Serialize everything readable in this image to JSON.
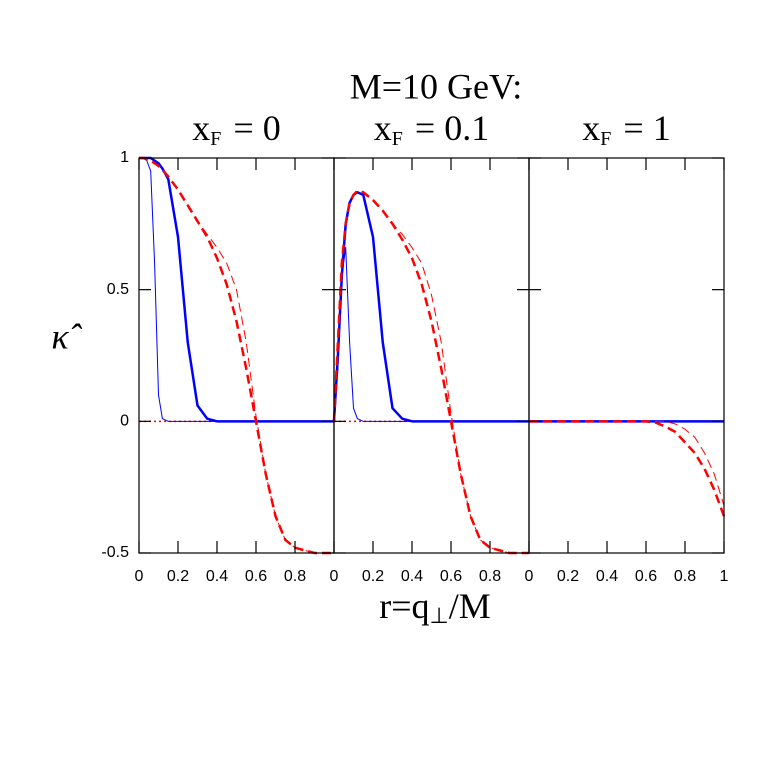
{
  "title": "M=10 GeV:",
  "xlabel": [
    "r=q",
    "⊥",
    "/M"
  ],
  "ylabel": "κ̂",
  "chart_data": [
    {
      "type": "line",
      "title": [
        "x",
        "F",
        "= 0"
      ],
      "x": [
        0,
        0.02,
        0.04,
        0.06,
        0.08,
        0.1,
        0.12,
        0.15,
        0.2,
        0.25,
        0.3,
        0.35,
        0.4,
        0.45,
        0.5,
        0.55,
        0.6,
        0.65,
        0.7,
        0.75,
        0.8,
        0.85,
        0.9,
        0.95,
        1
      ],
      "xlim": [
        0,
        1
      ],
      "ylim": [
        -0.5,
        1
      ],
      "xticks": [
        0,
        0.2,
        0.4,
        0.6,
        0.8
      ],
      "yticks": [
        -0.5,
        0,
        0.5,
        1
      ],
      "series": [
        {
          "color": "#ff0000",
          "linewidth": 1.5,
          "linestyle": "dotted",
          "values": [
            0,
            0,
            0,
            0,
            0,
            0,
            0,
            0,
            0,
            0,
            0,
            0,
            0,
            0,
            0,
            0,
            0,
            0,
            0,
            0,
            0,
            0,
            0,
            0,
            0
          ]
        },
        {
          "color": "#0000ff",
          "linewidth": 1,
          "linestyle": "solid",
          "values": [
            1,
            1,
            0.99,
            0.95,
            0.6,
            0.1,
            0.01,
            0,
            0,
            0,
            0,
            0,
            0,
            0,
            0,
            0,
            0,
            0,
            0,
            0,
            0,
            0,
            0,
            0,
            0
          ]
        },
        {
          "color": "#0000ff",
          "linewidth": 2.5,
          "linestyle": "solid",
          "values": [
            1,
            1,
            1,
            1,
            0.99,
            0.98,
            0.96,
            0.92,
            0.7,
            0.3,
            0.06,
            0.01,
            0,
            0,
            0,
            0,
            0,
            0,
            0,
            0,
            0,
            0,
            0,
            0,
            0
          ]
        },
        {
          "color": "#ff0000",
          "linewidth": 1,
          "linestyle": "dashed",
          "values": [
            1,
            1,
            0.995,
            0.99,
            0.98,
            0.97,
            0.955,
            0.93,
            0.88,
            0.82,
            0.76,
            0.71,
            0.66,
            0.6,
            0.5,
            0.3,
            0.02,
            -0.2,
            -0.36,
            -0.45,
            -0.48,
            -0.49,
            -0.5,
            -0.5,
            -0.5
          ]
        },
        {
          "color": "#ff0000",
          "linewidth": 2.5,
          "linestyle": "dashed",
          "values": [
            1,
            1,
            0.995,
            0.99,
            0.98,
            0.97,
            0.955,
            0.93,
            0.88,
            0.82,
            0.76,
            0.7,
            0.62,
            0.52,
            0.38,
            0.2,
            0,
            -0.2,
            -0.36,
            -0.45,
            -0.48,
            -0.49,
            -0.5,
            -0.5,
            -0.5
          ]
        }
      ]
    },
    {
      "type": "line",
      "title": [
        "x",
        "F",
        "= 0.1"
      ],
      "x": [
        0,
        0.02,
        0.04,
        0.06,
        0.08,
        0.1,
        0.12,
        0.15,
        0.2,
        0.25,
        0.3,
        0.35,
        0.4,
        0.45,
        0.5,
        0.55,
        0.6,
        0.65,
        0.7,
        0.75,
        0.8,
        0.85,
        0.9,
        0.95,
        1
      ],
      "xlim": [
        0,
        1
      ],
      "ylim": [
        -0.5,
        1
      ],
      "xticks": [
        0,
        0.2,
        0.4,
        0.6,
        0.8
      ],
      "yticks": [
        -0.5,
        0,
        0.5,
        1
      ],
      "series": [
        {
          "color": "#ff0000",
          "linewidth": 1.5,
          "linestyle": "dotted",
          "values": [
            0,
            0,
            0,
            0,
            0,
            0,
            0,
            0,
            0,
            0,
            0,
            0,
            0,
            0,
            0,
            0,
            0,
            0,
            0,
            0,
            0,
            0,
            0,
            0,
            0
          ]
        },
        {
          "color": "#0000ff",
          "linewidth": 1,
          "linestyle": "solid",
          "values": [
            0,
            0.2,
            0.55,
            0.66,
            0.3,
            0.05,
            0.01,
            0,
            0,
            0,
            0,
            0,
            0,
            0,
            0,
            0,
            0,
            0,
            0,
            0,
            0,
            0,
            0,
            0,
            0
          ]
        },
        {
          "color": "#0000ff",
          "linewidth": 2.5,
          "linestyle": "solid",
          "values": [
            0,
            0.25,
            0.55,
            0.75,
            0.83,
            0.86,
            0.87,
            0.86,
            0.7,
            0.3,
            0.05,
            0.01,
            0,
            0,
            0,
            0,
            0,
            0,
            0,
            0,
            0,
            0,
            0,
            0,
            0
          ]
        },
        {
          "color": "#ff0000",
          "linewidth": 1,
          "linestyle": "dashed",
          "values": [
            0,
            0.3,
            0.6,
            0.75,
            0.83,
            0.86,
            0.875,
            0.87,
            0.84,
            0.8,
            0.75,
            0.71,
            0.66,
            0.6,
            0.48,
            0.3,
            0.03,
            -0.2,
            -0.36,
            -0.45,
            -0.48,
            -0.49,
            -0.5,
            -0.5,
            -0.5
          ]
        },
        {
          "color": "#ff0000",
          "linewidth": 2.5,
          "linestyle": "dashed",
          "values": [
            0,
            0.3,
            0.6,
            0.75,
            0.83,
            0.86,
            0.875,
            0.87,
            0.84,
            0.8,
            0.75,
            0.69,
            0.62,
            0.52,
            0.38,
            0.2,
            0,
            -0.2,
            -0.36,
            -0.45,
            -0.48,
            -0.49,
            -0.5,
            -0.5,
            -0.5
          ]
        }
      ]
    },
    {
      "type": "line",
      "title": [
        "x",
        "F",
        "= 1"
      ],
      "x": [
        0,
        0.02,
        0.04,
        0.06,
        0.08,
        0.1,
        0.12,
        0.15,
        0.2,
        0.25,
        0.3,
        0.35,
        0.4,
        0.45,
        0.5,
        0.55,
        0.6,
        0.65,
        0.7,
        0.75,
        0.8,
        0.85,
        0.9,
        0.95,
        1
      ],
      "xlim": [
        0,
        1
      ],
      "ylim": [
        -0.5,
        1
      ],
      "xticks": [
        0,
        0.2,
        0.4,
        0.6,
        0.8,
        1
      ],
      "yticks": [
        -0.5,
        0,
        0.5,
        1
      ],
      "series": [
        {
          "color": "#ff0000",
          "linewidth": 1.5,
          "linestyle": "dotted",
          "values": [
            0,
            0,
            0,
            0,
            0,
            0,
            0,
            0,
            0,
            0,
            0,
            0,
            0,
            0,
            0,
            0,
            0,
            0,
            0,
            0,
            0,
            0,
            0,
            0,
            0
          ]
        },
        {
          "color": "#0000ff",
          "linewidth": 1,
          "linestyle": "solid",
          "values": [
            0,
            0,
            0,
            0,
            0,
            0,
            0,
            0,
            0,
            0,
            0,
            0,
            0,
            0,
            0,
            0,
            0,
            0,
            0,
            0,
            0,
            0,
            0,
            0,
            0
          ]
        },
        {
          "color": "#0000ff",
          "linewidth": 2.5,
          "linestyle": "solid",
          "values": [
            0,
            0,
            0,
            0,
            0,
            0,
            0,
            0,
            0,
            0,
            0,
            0,
            0,
            0,
            0,
            0,
            0,
            0,
            0,
            0,
            0,
            0,
            0,
            0,
            0
          ]
        },
        {
          "color": "#ff0000",
          "linewidth": 1,
          "linestyle": "dashed",
          "values": [
            0,
            0,
            0,
            0,
            0,
            0,
            0,
            0,
            0,
            0,
            0,
            0,
            0,
            0,
            0,
            0,
            0,
            0,
            0,
            -0.01,
            -0.03,
            -0.06,
            -0.12,
            -0.2,
            -0.32
          ]
        },
        {
          "color": "#ff0000",
          "linewidth": 2.5,
          "linestyle": "dashed",
          "values": [
            0,
            0,
            0,
            0,
            0,
            0,
            0,
            0,
            0,
            0,
            0,
            0,
            0,
            0,
            0,
            0,
            0,
            -0.005,
            -0.02,
            -0.04,
            -0.08,
            -0.12,
            -0.18,
            -0.26,
            -0.36
          ]
        }
      ]
    }
  ]
}
